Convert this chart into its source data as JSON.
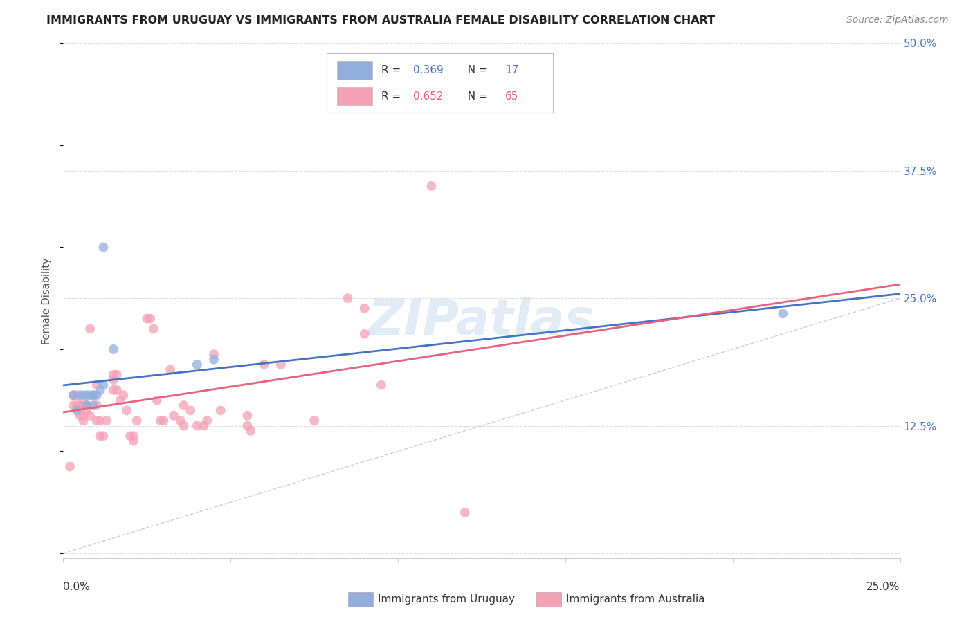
{
  "title": "IMMIGRANTS FROM URUGUAY VS IMMIGRANTS FROM AUSTRALIA FEMALE DISABILITY CORRELATION CHART",
  "source": "Source: ZipAtlas.com",
  "ylabel": "Female Disability",
  "xlim": [
    0.0,
    0.25
  ],
  "ylim": [
    -0.005,
    0.5
  ],
  "yticks": [
    0.0,
    0.125,
    0.25,
    0.375,
    0.5
  ],
  "ytick_labels": [
    "",
    "12.5%",
    "25.0%",
    "37.5%",
    "50.0%"
  ],
  "xticks": [
    0.0,
    0.05,
    0.1,
    0.15,
    0.2,
    0.25
  ],
  "uruguay_color": "#92AEDD",
  "australia_color": "#F4A0B5",
  "uruguay_line_color": "#4472C4",
  "australia_line_color": "#E8607A",
  "uruguay_scatter": [
    [
      0.003,
      0.155
    ],
    [
      0.004,
      0.14
    ],
    [
      0.005,
      0.155
    ],
    [
      0.006,
      0.155
    ],
    [
      0.007,
      0.155
    ],
    [
      0.007,
      0.145
    ],
    [
      0.008,
      0.155
    ],
    [
      0.009,
      0.155
    ],
    [
      0.009,
      0.145
    ],
    [
      0.01,
      0.155
    ],
    [
      0.011,
      0.16
    ],
    [
      0.012,
      0.165
    ],
    [
      0.012,
      0.3
    ],
    [
      0.015,
      0.2
    ],
    [
      0.04,
      0.185
    ],
    [
      0.045,
      0.19
    ],
    [
      0.215,
      0.235
    ]
  ],
  "australia_scatter": [
    [
      0.002,
      0.085
    ],
    [
      0.003,
      0.145
    ],
    [
      0.003,
      0.155
    ],
    [
      0.004,
      0.155
    ],
    [
      0.004,
      0.145
    ],
    [
      0.005,
      0.145
    ],
    [
      0.005,
      0.135
    ],
    [
      0.005,
      0.145
    ],
    [
      0.006,
      0.145
    ],
    [
      0.006,
      0.135
    ],
    [
      0.006,
      0.13
    ],
    [
      0.007,
      0.145
    ],
    [
      0.007,
      0.14
    ],
    [
      0.007,
      0.145
    ],
    [
      0.008,
      0.135
    ],
    [
      0.008,
      0.22
    ],
    [
      0.009,
      0.155
    ],
    [
      0.01,
      0.165
    ],
    [
      0.01,
      0.145
    ],
    [
      0.01,
      0.13
    ],
    [
      0.011,
      0.13
    ],
    [
      0.011,
      0.115
    ],
    [
      0.012,
      0.115
    ],
    [
      0.013,
      0.13
    ],
    [
      0.015,
      0.175
    ],
    [
      0.015,
      0.16
    ],
    [
      0.015,
      0.17
    ],
    [
      0.016,
      0.175
    ],
    [
      0.016,
      0.16
    ],
    [
      0.017,
      0.15
    ],
    [
      0.018,
      0.155
    ],
    [
      0.019,
      0.14
    ],
    [
      0.02,
      0.115
    ],
    [
      0.021,
      0.115
    ],
    [
      0.021,
      0.11
    ],
    [
      0.022,
      0.13
    ],
    [
      0.025,
      0.23
    ],
    [
      0.026,
      0.23
    ],
    [
      0.027,
      0.22
    ],
    [
      0.028,
      0.15
    ],
    [
      0.029,
      0.13
    ],
    [
      0.03,
      0.13
    ],
    [
      0.032,
      0.18
    ],
    [
      0.033,
      0.135
    ],
    [
      0.035,
      0.13
    ],
    [
      0.036,
      0.125
    ],
    [
      0.036,
      0.145
    ],
    [
      0.038,
      0.14
    ],
    [
      0.04,
      0.125
    ],
    [
      0.042,
      0.125
    ],
    [
      0.043,
      0.13
    ],
    [
      0.045,
      0.195
    ],
    [
      0.047,
      0.14
    ],
    [
      0.055,
      0.135
    ],
    [
      0.055,
      0.125
    ],
    [
      0.056,
      0.12
    ],
    [
      0.06,
      0.185
    ],
    [
      0.065,
      0.185
    ],
    [
      0.075,
      0.13
    ],
    [
      0.085,
      0.25
    ],
    [
      0.09,
      0.24
    ],
    [
      0.09,
      0.215
    ],
    [
      0.095,
      0.165
    ],
    [
      0.11,
      0.36
    ],
    [
      0.12,
      0.04
    ]
  ],
  "watermark_text": "ZIPatlas",
  "watermark_color": "#C8DCF0",
  "background_color": "#FFFFFF",
  "grid_color": "#DDDDDD",
  "title_fontsize": 11.5,
  "source_fontsize": 10,
  "legend_r1": "0.369",
  "legend_n1": "17",
  "legend_r2": "0.652",
  "legend_n2": "65",
  "accent_color": "#4472C4",
  "accent_color2": "#E8607A"
}
